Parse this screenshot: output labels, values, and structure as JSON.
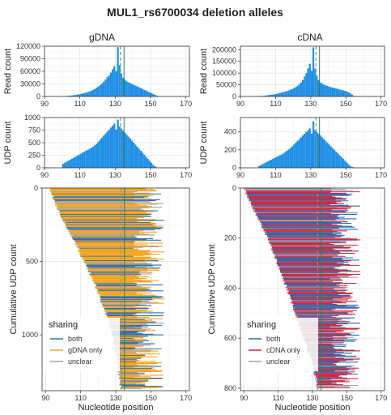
{
  "title": "MUL1_rs6700034 deletion alleles",
  "columns": [
    "gDNA",
    "cDNA"
  ],
  "colors": {
    "histogram": "#1f8fe6",
    "both": "#2f6dad",
    "gDNA only": "#f5a623",
    "cDNA only": "#d7263d",
    "unclear": "#9aa4b8",
    "vline_solid": "#2e7d4f",
    "vline_dashed": "#8a8f8a"
  },
  "chart_data": [
    {
      "id": "gdna-read",
      "type": "histogram",
      "ylabel": "Read count",
      "xlim": [
        90,
        172
      ],
      "ylim": [
        0,
        120000
      ],
      "xticks": [
        90,
        110,
        130,
        150,
        170
      ],
      "yticks": [
        0,
        30000,
        60000,
        90000,
        120000
      ],
      "bin_start": 90,
      "bin_width": 1,
      "vlines": [
        {
          "x": 135,
          "style": "solid"
        },
        {
          "x": 133,
          "style": "dashed"
        }
      ],
      "values": [
        0,
        0,
        0,
        0,
        0,
        0,
        0,
        0,
        0,
        0,
        500,
        800,
        1100,
        1500,
        1900,
        2400,
        3000,
        3600,
        4300,
        5100,
        6000,
        7000,
        8000,
        9200,
        10500,
        12000,
        13800,
        15800,
        18000,
        21000,
        24000,
        27000,
        31000,
        35000,
        40000,
        46000,
        50000,
        57000,
        65000,
        72000,
        60000,
        118000,
        75000,
        55000,
        45000,
        40000,
        36000,
        34000,
        32000,
        30000,
        28000,
        26000,
        24000,
        22000,
        20000,
        18000,
        16000,
        14000,
        12000,
        10000,
        8000,
        6000,
        4000,
        2000,
        1000,
        0,
        0,
        0,
        0,
        0,
        0,
        0,
        0,
        0,
        0,
        0,
        0,
        0,
        0,
        0,
        0,
        0
      ]
    },
    {
      "id": "cdna-read",
      "type": "histogram",
      "ylabel": "Read count",
      "xlim": [
        90,
        172
      ],
      "ylim": [
        0,
        215000
      ],
      "xticks": [
        90,
        110,
        130,
        150,
        170
      ],
      "yticks": [
        0,
        50000,
        100000,
        150000,
        200000
      ],
      "bin_start": 90,
      "bin_width": 1,
      "vlines": [
        {
          "x": 135,
          "style": "solid"
        },
        {
          "x": 133,
          "style": "dashed"
        }
      ],
      "values": [
        0,
        0,
        0,
        0,
        0,
        0,
        0,
        0,
        0,
        0,
        1000,
        1500,
        2000,
        3000,
        4000,
        5000,
        6000,
        7000,
        8000,
        9500,
        11000,
        13000,
        15000,
        17000,
        19000,
        21000,
        23000,
        26000,
        29000,
        32000,
        36000,
        40000,
        45000,
        52000,
        60000,
        70000,
        85000,
        100000,
        120000,
        140000,
        110000,
        210000,
        120000,
        90000,
        70000,
        60000,
        55000,
        50000,
        48000,
        45000,
        42000,
        40000,
        38000,
        36000,
        34000,
        32000,
        30000,
        28000,
        26000,
        24000,
        22000,
        18000,
        14000,
        8000,
        3000,
        0,
        0,
        0,
        0,
        0,
        0,
        0,
        0,
        0,
        0,
        0,
        0,
        0,
        0,
        0,
        0,
        0
      ]
    },
    {
      "id": "gdna-udp",
      "type": "histogram",
      "ylabel": "UDP count",
      "xlim": [
        90,
        172
      ],
      "ylim": [
        0,
        1000
      ],
      "xticks": [
        90,
        110,
        130,
        150,
        170
      ],
      "yticks": [
        0,
        250,
        500,
        750,
        1000
      ],
      "bin_start": 90,
      "bin_width": 1,
      "vlines": [
        {
          "x": 135,
          "style": "solid"
        },
        {
          "x": 133,
          "style": "dashed"
        }
      ],
      "values": [
        0,
        0,
        0,
        0,
        0,
        0,
        0,
        0,
        0,
        0,
        80,
        100,
        120,
        140,
        160,
        180,
        200,
        220,
        240,
        260,
        280,
        300,
        320,
        340,
        360,
        380,
        400,
        420,
        450,
        480,
        520,
        560,
        600,
        640,
        680,
        720,
        760,
        800,
        840,
        880,
        760,
        960,
        820,
        780,
        740,
        700,
        660,
        620,
        580,
        540,
        500,
        460,
        420,
        380,
        340,
        300,
        260,
        220,
        180,
        140,
        100,
        60,
        30,
        10,
        5,
        0,
        0,
        0,
        0,
        0,
        0,
        0,
        0,
        0,
        0,
        0,
        0,
        0,
        0,
        0,
        0,
        0
      ]
    },
    {
      "id": "cdna-udp",
      "type": "histogram",
      "ylabel": "UDP count",
      "xlim": [
        90,
        172
      ],
      "ylim": [
        0,
        560
      ],
      "xticks": [
        90,
        110,
        130,
        150,
        170
      ],
      "yticks": [
        0,
        200,
        400
      ],
      "bin_start": 90,
      "bin_width": 1,
      "vlines": [
        {
          "x": 135,
          "style": "solid"
        },
        {
          "x": 133,
          "style": "dashed"
        }
      ],
      "values": [
        0,
        0,
        0,
        0,
        0,
        0,
        0,
        0,
        0,
        0,
        20,
        30,
        40,
        50,
        60,
        70,
        80,
        90,
        100,
        110,
        120,
        130,
        140,
        150,
        160,
        175,
        190,
        205,
        220,
        240,
        260,
        280,
        300,
        320,
        340,
        360,
        380,
        400,
        420,
        440,
        380,
        520,
        420,
        400,
        380,
        360,
        340,
        320,
        300,
        280,
        260,
        240,
        220,
        200,
        180,
        160,
        140,
        120,
        100,
        80,
        60,
        40,
        20,
        10,
        5,
        0,
        0,
        0,
        0,
        0,
        0,
        0,
        0,
        0,
        0,
        0,
        0,
        0,
        0,
        0,
        0,
        0
      ]
    },
    {
      "id": "gdna-alleles",
      "type": "segments",
      "xlabel": "Nucleotide position",
      "ylabel": "Cumulative UDP count",
      "xlim": [
        88,
        172
      ],
      "ylim": [
        0,
        1380
      ],
      "y_reversed": true,
      "xticks": [
        90,
        110,
        130,
        150,
        170
      ],
      "yticks": [
        0,
        500,
        1000
      ],
      "vlines": [
        {
          "x": 135,
          "style": "solid"
        },
        {
          "x": 133,
          "style": "dashed"
        }
      ],
      "legend": {
        "title": "sharing",
        "position": "bottom-left",
        "entries": [
          "both",
          "gDNA only",
          "unclear"
        ]
      },
      "n_alleles": 1370,
      "start_curve": [
        [
          0,
          92
        ],
        [
          150,
          97
        ],
        [
          400,
          108
        ],
        [
          650,
          118
        ],
        [
          900,
          126
        ],
        [
          1100,
          130
        ],
        [
          1370,
          133
        ]
      ],
      "end_range": [
        140,
        158
      ],
      "share_fractions": {
        "both": 0.3,
        "gDNA only": 0.62,
        "unclear": 0.08
      }
    },
    {
      "id": "cdna-alleles",
      "type": "segments",
      "xlabel": "Nucleotide position",
      "ylabel": "Cumulative UDP count",
      "xlim": [
        88,
        172
      ],
      "ylim": [
        0,
        810
      ],
      "y_reversed": true,
      "xticks": [
        90,
        110,
        130,
        150,
        170
      ],
      "yticks": [
        0,
        200,
        400,
        600,
        800
      ],
      "vlines": [
        {
          "x": 135,
          "style": "solid"
        },
        {
          "x": 133,
          "style": "dashed"
        }
      ],
      "legend": {
        "title": "sharing",
        "position": "bottom-left",
        "entries": [
          "both",
          "cDNA only",
          "unclear"
        ]
      },
      "n_alleles": 800,
      "start_curve": [
        [
          0,
          90
        ],
        [
          60,
          94
        ],
        [
          200,
          104
        ],
        [
          400,
          115
        ],
        [
          600,
          125
        ],
        [
          700,
          130
        ],
        [
          800,
          133
        ]
      ],
      "end_range": [
        140,
        158
      ],
      "share_fractions": {
        "both": 0.35,
        "cDNA only": 0.5,
        "unclear": 0.15
      }
    }
  ]
}
